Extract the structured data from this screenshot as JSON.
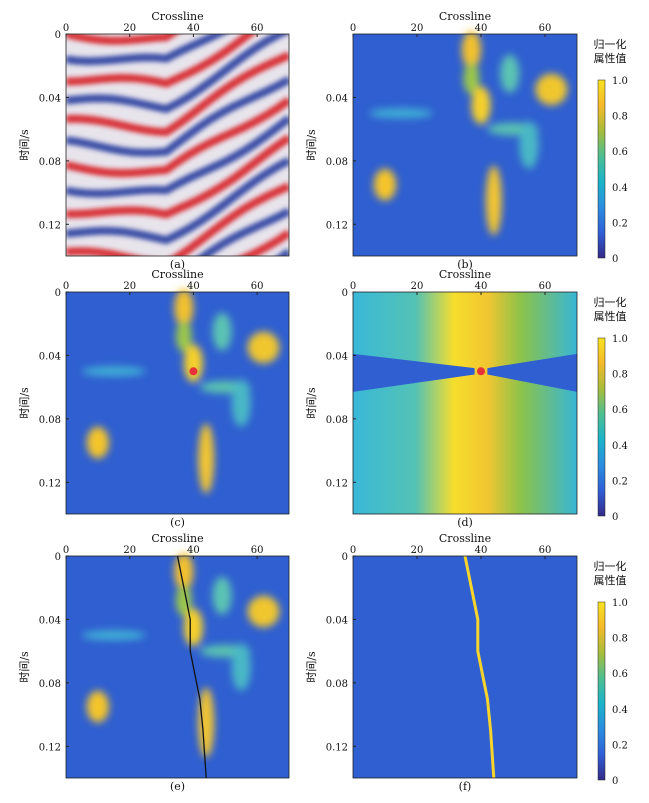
{
  "figure": {
    "panels": [
      {
        "id": "a",
        "label": "(a)",
        "type": "seismic",
        "title": "Crossline",
        "ylabel": "时间/s",
        "xticks": [
          "0",
          "20",
          "40",
          "60"
        ],
        "yticks": [
          "0",
          "0.04",
          "0.08",
          "0.12"
        ]
      },
      {
        "id": "b",
        "label": "(b)",
        "type": "attribute",
        "title": "Crossline",
        "ylabel": "时间/s",
        "xticks": [
          "0",
          "20",
          "40",
          "60"
        ],
        "yticks": [
          "0.04",
          "0.08",
          "0.12"
        ]
      },
      {
        "id": "c",
        "label": "(c)",
        "type": "attribute_seed",
        "title": "Crossline",
        "ylabel": "时间/s",
        "xticks": [
          "0",
          "20",
          "40",
          "60"
        ],
        "yticks": [
          "0",
          "0.04",
          "0.08",
          "0.12"
        ]
      },
      {
        "id": "d",
        "label": "(d)",
        "type": "cost",
        "title": "Crossline",
        "ylabel": "时间/s",
        "xticks": [
          "0",
          "20",
          "40",
          "60"
        ],
        "yticks": [
          "0",
          "0.04",
          "0.08",
          "0.12"
        ]
      },
      {
        "id": "e",
        "label": "(e)",
        "type": "attribute_path",
        "title": "Crossline",
        "ylabel": "时间/s",
        "xticks": [
          "0",
          "20",
          "40",
          "60"
        ],
        "yticks": [
          "0",
          "0.04",
          "0.08",
          "0.12"
        ]
      },
      {
        "id": "f",
        "label": "(f)",
        "type": "fault",
        "title": "Crossline",
        "ylabel": "时间/s",
        "xticks": [
          "0",
          "20",
          "40",
          "60"
        ],
        "yticks": [
          "0",
          "0.04",
          "0.08",
          "0.12"
        ]
      }
    ],
    "colorbar": {
      "title_line1": "归一化",
      "title_line2": "属性值",
      "ticks": [
        "1.0",
        "0.8",
        "0.6",
        "0.4",
        "0.2",
        "0"
      ],
      "colors": [
        "#f9e21f",
        "#f4ba2a",
        "#a7bd3a",
        "#4cbf93",
        "#1ab4c9",
        "#2a8ee0",
        "#2f5fd8",
        "#352a87"
      ]
    }
  },
  "chart_data": [
    {
      "type": "heatmap",
      "panel": "a",
      "title": "Crossline",
      "ylabel": "时间/s",
      "xlim": [
        0,
        70
      ],
      "ylim": [
        0,
        0.14
      ],
      "description_values": "seismic amplitude section, red/white/blue"
    },
    {
      "type": "heatmap",
      "panel": "b",
      "title": "Crossline",
      "ylabel": "时间/s",
      "xlim": [
        0,
        70
      ],
      "ylim": [
        0,
        0.14
      ],
      "clim": [
        0,
        1
      ]
    },
    {
      "type": "heatmap",
      "panel": "c",
      "title": "Crossline",
      "ylabel": "时间/s",
      "xlim": [
        0,
        70
      ],
      "ylim": [
        0,
        0.14
      ],
      "seed_point": {
        "x": 40,
        "y": 0.05
      }
    },
    {
      "type": "heatmap",
      "panel": "d",
      "title": "Crossline",
      "ylabel": "时间/s",
      "xlim": [
        0,
        70
      ],
      "ylim": [
        0,
        0.14
      ],
      "clim": [
        0,
        1
      ],
      "seed_point": {
        "x": 40,
        "y": 0.05
      }
    },
    {
      "type": "heatmap",
      "panel": "e",
      "title": "Crossline",
      "ylabel": "时间/s",
      "xlim": [
        0,
        70
      ],
      "ylim": [
        0,
        0.14
      ],
      "path": {
        "x": [
          35,
          36,
          37,
          38,
          39,
          39,
          40,
          41,
          42,
          43,
          44
        ],
        "y": [
          0,
          0.01,
          0.02,
          0.03,
          0.04,
          0.06,
          0.07,
          0.08,
          0.09,
          0.11,
          0.14
        ]
      }
    },
    {
      "type": "heatmap",
      "panel": "f",
      "title": "Crossline",
      "ylabel": "时间/s",
      "xlim": [
        0,
        70
      ],
      "ylim": [
        0,
        0.14
      ],
      "clim": [
        0,
        1
      ],
      "fault": {
        "x": [
          35,
          36,
          37,
          38,
          39,
          39,
          40,
          41,
          42,
          43,
          44
        ],
        "y": [
          0,
          0.01,
          0.02,
          0.03,
          0.04,
          0.06,
          0.07,
          0.08,
          0.09,
          0.11,
          0.14
        ]
      }
    }
  ]
}
